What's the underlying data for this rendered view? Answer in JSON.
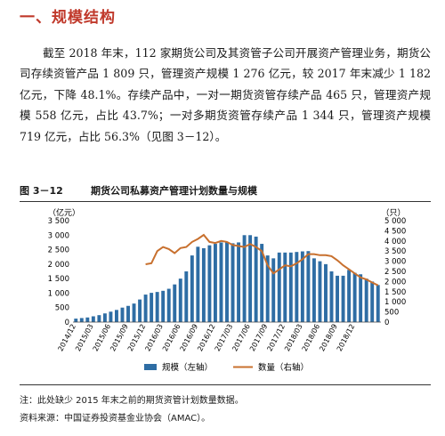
{
  "heading": "一、规模结构",
  "paragraph": "截至 2018 年末，112 家期货公司及其资管子公司开展资产管理业务，期货公司存续资管产品 1 809 只，管理资产规模 1 276 亿元，较 2017 年末减少 1 182 亿元，下降 48.1%。存续产品中，一对一期货资管存续产品 465 只，管理资产规模 558 亿元，占比 43.7%；一对多期货资管存续产品 1 344 只，管理资产规模 719 亿元，占比 56.3%（见图 3－12）。",
  "figure": {
    "number": "图 3－12",
    "title": "期货公司私募资产管理计划数量与规模"
  },
  "chart_data": {
    "type": "bar",
    "left_unit": "（亿元）",
    "right_unit": "（只）",
    "left_ticks": [
      "0",
      "500",
      "1 000",
      "1 500",
      "2 000",
      "2 500",
      "3 000",
      "3 500"
    ],
    "right_ticks": [
      "0",
      "500",
      "1 000",
      "1 500",
      "2 000",
      "2 500",
      "3 000",
      "3 500",
      "4 000",
      "4 500",
      "5 000"
    ],
    "left_ylim": [
      0,
      3500
    ],
    "right_ylim": [
      0,
      5000
    ],
    "x_tick_labels": [
      "2014/12",
      "2015/03",
      "2015/06",
      "2015/09",
      "2015/12",
      "2016/03",
      "2016/06",
      "2016/09",
      "2016/12",
      "2017/03",
      "2017/06",
      "2017/09",
      "2017/12",
      "2018/03",
      "2018/06",
      "2018/09",
      "2018/12"
    ],
    "series": [
      {
        "name": "规模（左轴）",
        "color": "#2e6da4",
        "values": [
          120,
          140,
          160,
          200,
          240,
          300,
          360,
          420,
          500,
          560,
          640,
          780,
          950,
          1010,
          1040,
          1080,
          1150,
          1300,
          1500,
          1750,
          2300,
          2600,
          2550,
          2650,
          2700,
          2750,
          2760,
          2720,
          2750,
          3000,
          3000,
          2950,
          2700,
          2300,
          2200,
          2400,
          2400,
          2400,
          2420,
          2440,
          2450,
          2200,
          2100,
          2000,
          1750,
          1600,
          1600,
          1800,
          1700,
          1650,
          1500,
          1400,
          1280
        ]
      },
      {
        "name": "数量（右轴）",
        "color": "#c8702e",
        "values": [
          null,
          null,
          null,
          null,
          null,
          null,
          null,
          null,
          null,
          null,
          null,
          null,
          2850,
          2900,
          3500,
          3700,
          3600,
          3400,
          3650,
          3700,
          3950,
          4100,
          4300,
          3950,
          3900,
          4000,
          3950,
          3800,
          3750,
          3700,
          3850,
          3700,
          3500,
          2800,
          2400,
          2600,
          2800,
          2750,
          2900,
          3100,
          3350,
          3350,
          3300,
          3300,
          3250,
          3050,
          2800,
          2600,
          2400,
          2200,
          2100,
          1950,
          1810
        ]
      }
    ]
  },
  "notes": {
    "note": "注：此处缺少 2015 年末之前的期货资管计划数量数据。",
    "source": "资料来源：中国证券投资基金业协会（AMAC）。"
  }
}
